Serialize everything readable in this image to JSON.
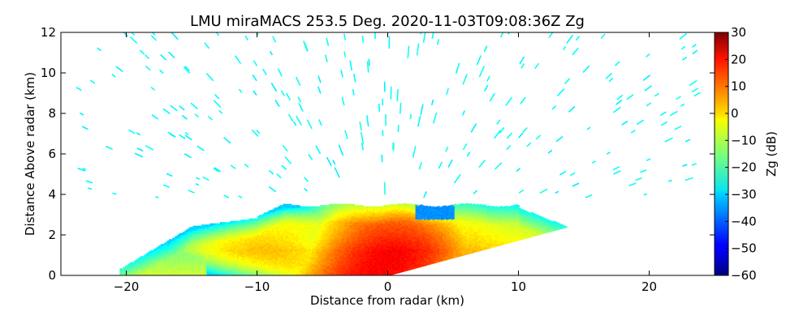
{
  "chart_data": {
    "type": "heatmap",
    "title": "LMU miraMACS 253.5 Deg. 2020-11-03T09:08:36Z  Zg",
    "xlabel": "Distance from radar (km)",
    "ylabel": "Distance Above radar  (km)",
    "xlim": [
      -25,
      25
    ],
    "ylim": [
      0,
      12
    ],
    "x_ticks": [
      -20,
      -10,
      0,
      10,
      20
    ],
    "x_tick_labels": [
      "−20",
      "−10",
      "0",
      "10",
      "20"
    ],
    "y_ticks": [
      0,
      2,
      4,
      6,
      8,
      10,
      12
    ],
    "y_tick_labels": [
      "0",
      "2",
      "4",
      "6",
      "8",
      "10",
      "12"
    ],
    "colorbar": {
      "label": "Zg (dB)",
      "range": [
        -60,
        30
      ],
      "ticks": [
        -60,
        -50,
        -40,
        -30,
        -20,
        -10,
        0,
        10,
        20,
        30
      ],
      "tick_labels": [
        "−60",
        "−50",
        "−40",
        "−30",
        "−20",
        "−10",
        "0",
        "10",
        "20",
        "30"
      ],
      "colormap": "jet"
    },
    "grid": false,
    "echo_regions": [
      {
        "description": "main precipitation layer",
        "x_range_km": [
          -20,
          13.5
        ],
        "top_km": 3.5,
        "typical_zg_db": [
          -25,
          15
        ]
      },
      {
        "description": "core",
        "x_km": -0.5,
        "height_range_km": [
          0,
          2.5
        ],
        "peak_zg_db": 20
      },
      {
        "description": "sparse high-altitude returns",
        "height_range_km": [
          4,
          12
        ],
        "zg_db": -27
      }
    ]
  }
}
